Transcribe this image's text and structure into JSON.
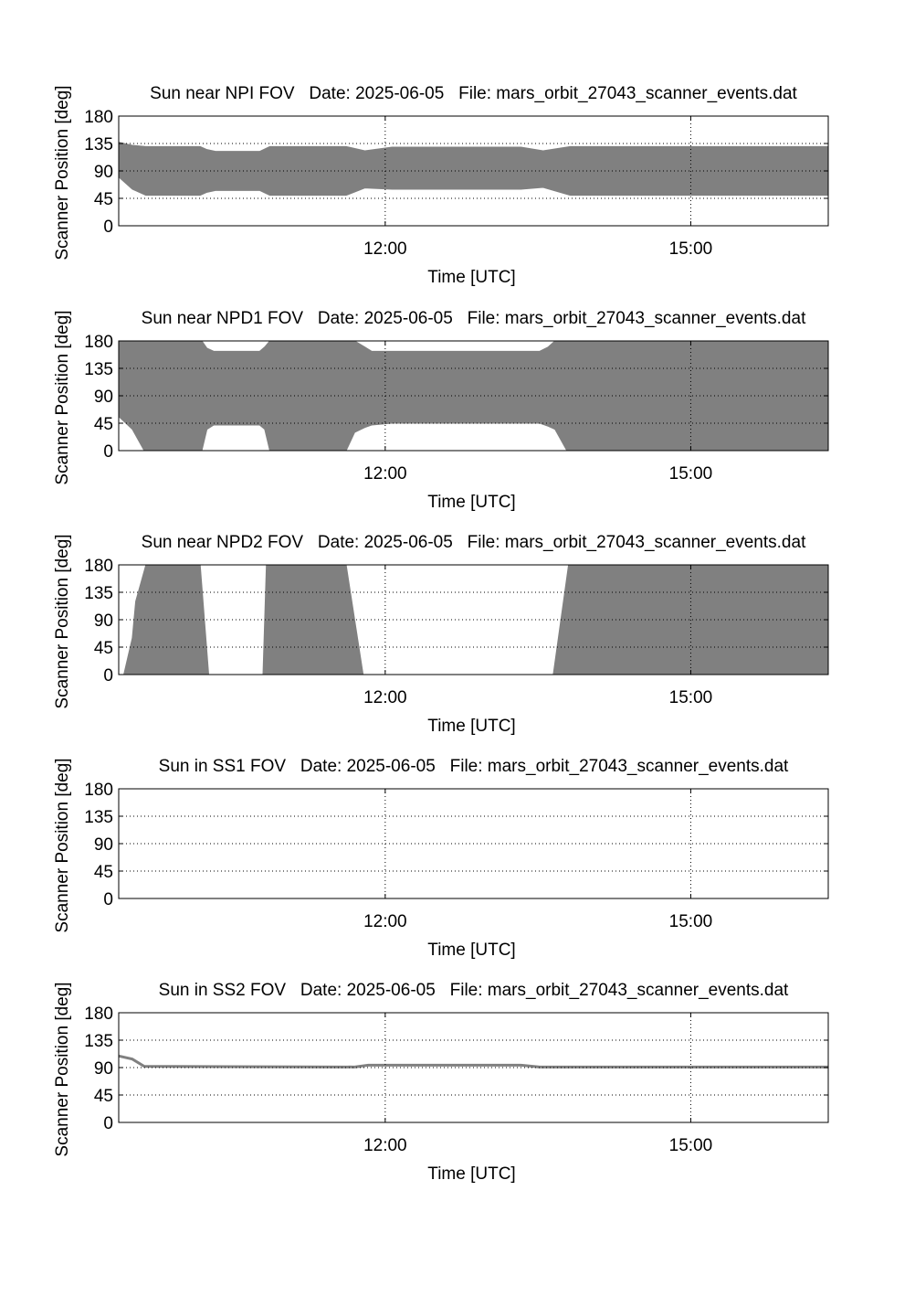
{
  "chart_data": [
    {
      "type": "band",
      "title": "Sun near NPI FOV   Date: 2025-06-05   File: mars_orbit_27043_scanner_events.dat",
      "xlabel": "Time [UTC]",
      "ylabel": "Scanner Position [deg]",
      "x": [
        "09:23",
        "09:31",
        "09:39",
        "10:11",
        "10:15",
        "10:20",
        "10:46",
        "10:52",
        "11:37",
        "11:48",
        "12:04",
        "13:20",
        "13:33",
        "13:49",
        "16:21"
      ],
      "upper": [
        137,
        132,
        130,
        130,
        125,
        122,
        122,
        130,
        130,
        123,
        129,
        129,
        123,
        130,
        130
      ],
      "lower": [
        80,
        60,
        50,
        50,
        55,
        58,
        58,
        50,
        50,
        62,
        60,
        60,
        63,
        50,
        50
      ],
      "color": "#808080",
      "xlim": [
        "09:23",
        "16:21"
      ],
      "xticks": [
        "12:00",
        "15:00"
      ],
      "ylim": [
        0,
        180
      ],
      "yticks": [
        0,
        45,
        90,
        135,
        180
      ],
      "grid": true
    },
    {
      "type": "band",
      "title": "Sun near NPD1 FOV   Date: 2025-06-05   File: mars_orbit_27043_scanner_events.dat",
      "xlabel": "Time [UTC]",
      "ylabel": "Scanner Position [deg]",
      "x": [
        "09:23",
        "09:31",
        "09:38",
        "10:12",
        "10:15",
        "10:19",
        "10:46",
        "10:49",
        "10:52",
        "11:37",
        "11:42",
        "11:48",
        "11:52",
        "12:04",
        "13:31",
        "13:36",
        "13:40",
        "13:47",
        "16:21"
      ],
      "upper": [
        180,
        180,
        180,
        180,
        168,
        163,
        163,
        170,
        180,
        180,
        180,
        170,
        163,
        163,
        163,
        170,
        180,
        180,
        180
      ],
      "lower": [
        56,
        35,
        0,
        0,
        35,
        42,
        42,
        35,
        0,
        0,
        30,
        38,
        42,
        45,
        45,
        40,
        35,
        0,
        0
      ],
      "color": "#808080",
      "xlim": [
        "09:23",
        "16:21"
      ],
      "xticks": [
        "12:00",
        "15:00"
      ],
      "ylim": [
        0,
        180
      ],
      "yticks": [
        0,
        45,
        90,
        135,
        180
      ],
      "grid": true
    },
    {
      "type": "band",
      "title": "Sun near NPD2 FOV   Date: 2025-06-05   File: mars_orbit_27043_scanner_events.dat",
      "xlabel": "Time [UTC]",
      "ylabel": "Scanner Position [deg]",
      "x": [
        "09:26",
        "09:31",
        "09:33",
        "09:39",
        "10:11",
        "10:16",
        "10:30",
        "10:48",
        "10:50",
        "11:37",
        "11:47",
        "12:40",
        "13:39",
        "13:48",
        "16:21"
      ],
      "upper": [
        0,
        60,
        120,
        180,
        180,
        0,
        null,
        0,
        180,
        180,
        0,
        null,
        0,
        180,
        180
      ],
      "lower": [
        0,
        0,
        0,
        0,
        0,
        0,
        null,
        0,
        0,
        0,
        0,
        null,
        0,
        0,
        0
      ],
      "color": "#808080",
      "xlim": [
        "09:23",
        "16:21"
      ],
      "xticks": [
        "12:00",
        "15:00"
      ],
      "ylim": [
        0,
        180
      ],
      "yticks": [
        0,
        45,
        90,
        135,
        180
      ],
      "grid": true
    },
    {
      "type": "band",
      "title": "Sun in SS1 FOV   Date: 2025-06-05   File: mars_orbit_27043_scanner_events.dat",
      "xlabel": "Time [UTC]",
      "ylabel": "Scanner Position [deg]",
      "x": [],
      "upper": [],
      "lower": [],
      "color": "#808080",
      "xlim": [
        "09:23",
        "16:21"
      ],
      "xticks": [
        "12:00",
        "15:00"
      ],
      "ylim": [
        0,
        180
      ],
      "yticks": [
        0,
        45,
        90,
        135,
        180
      ],
      "grid": true
    },
    {
      "type": "line",
      "title": "Sun in SS2 FOV   Date: 2025-06-05   File: mars_orbit_27043_scanner_events.dat",
      "xlabel": "Time [UTC]",
      "ylabel": "Scanner Position [deg]",
      "x": [
        "09:23",
        "09:31",
        "09:38",
        "11:42",
        "11:50",
        "13:20",
        "13:31",
        "16:21"
      ],
      "values": [
        109,
        104,
        92,
        91,
        94,
        94,
        91,
        91
      ],
      "color": "#808080",
      "xlim": [
        "09:23",
        "16:21"
      ],
      "xticks": [
        "12:00",
        "15:00"
      ],
      "ylim": [
        0,
        180
      ],
      "yticks": [
        0,
        45,
        90,
        135,
        180
      ],
      "grid": true
    }
  ]
}
